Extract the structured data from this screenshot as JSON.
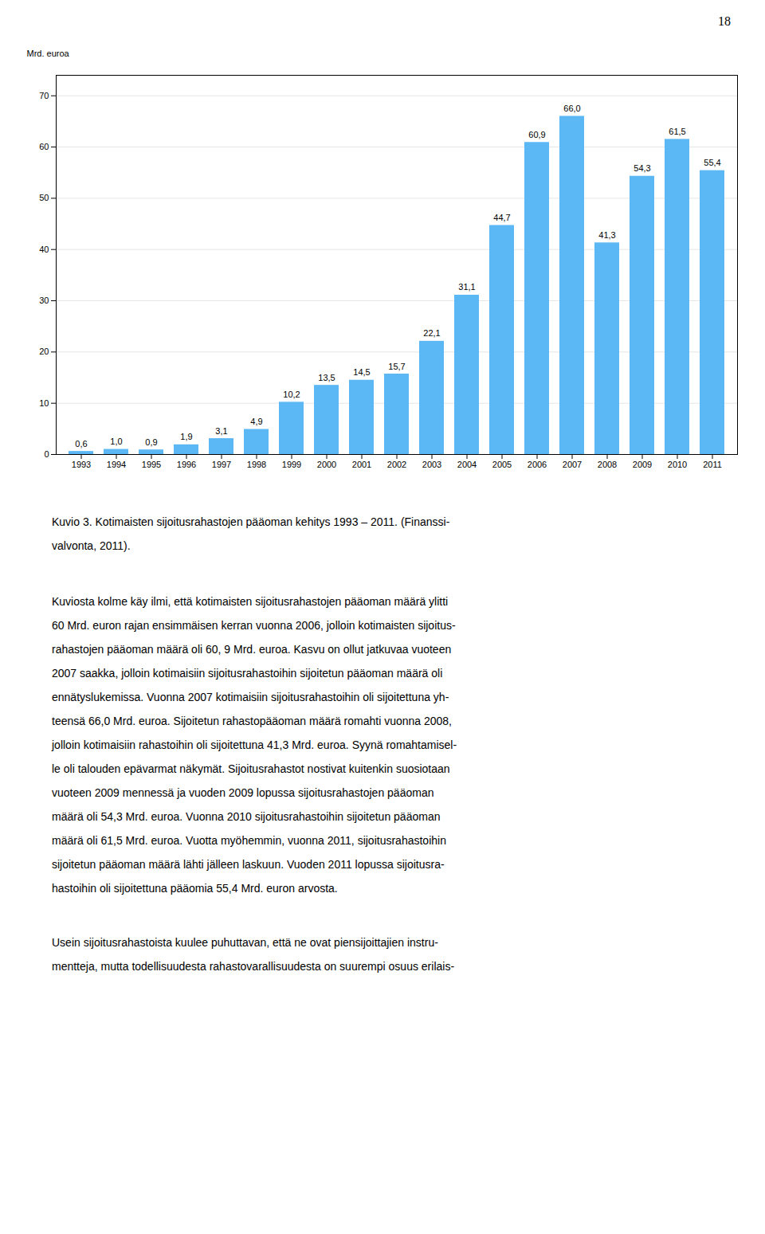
{
  "chart_data": {
    "type": "bar",
    "categories": [
      "1993",
      "1994",
      "1995",
      "1996",
      "1997",
      "1998",
      "1999",
      "2000",
      "2001",
      "2002",
      "2003",
      "2004",
      "2005",
      "2006",
      "2007",
      "2008",
      "2009",
      "2010",
      "2011"
    ],
    "values": [
      0.6,
      1.0,
      0.9,
      1.9,
      3.1,
      4.9,
      10.2,
      13.5,
      14.5,
      15.7,
      22.1,
      31.1,
      44.7,
      60.9,
      66.0,
      41.3,
      54.3,
      61.5,
      55.4
    ],
    "value_labels": [
      "0,6",
      "1,0",
      "0,9",
      "1,9",
      "3,1",
      "4,9",
      "10,2",
      "13,5",
      "14,5",
      "15,7",
      "22,1",
      "31,1",
      "44,7",
      "60,9",
      "66,0",
      "41,3",
      "54,3",
      "61,5",
      "55,4"
    ],
    "data_labels": true,
    "color": "#5BB8F5",
    "ylabel": "Mrd. euroa",
    "ylim": [
      0,
      74
    ],
    "yticks": [
      0,
      10,
      20,
      30,
      40,
      50,
      60,
      70
    ],
    "grid": true,
    "caption": [
      "Kuvio 3. Kotimaisten sijoitusrahastojen pääoman kehitys 1993 – 2011. (Finanssi-",
      "valvonta, 2011)."
    ]
  },
  "page": {
    "page_number": "18",
    "paragraphs": [
      [
        "Kuviosta kolme käy ilmi, että kotimaisten sijoitusrahastojen pääoman määrä ylitti",
        "60 Mrd. euron rajan ensimmäisen kerran vuonna 2006, jolloin kotimaisten sijoitus-",
        "rahastojen pääoman määrä oli 60, 9 Mrd. euroa. Kasvu on ollut jatkuvaa vuoteen",
        "2007 saakka, jolloin kotimaisiin sijoitusrahastoihin sijoitetun pääoman määrä oli",
        "ennätyslukemissa. Vuonna 2007 kotimaisiin sijoitusrahastoihin oli sijoitettuna yh-",
        "teensä 66,0 Mrd. euroa. Sijoitetun rahastopääoman määrä romahti vuonna 2008,",
        "jolloin kotimaisiin rahastoihin oli sijoitettuna 41,3 Mrd. euroa. Syynä romahtamisel-",
        "le oli talouden epävarmat näkymät. Sijoitusrahastot nostivat kuitenkin suosiotaan",
        "vuoteen 2009 mennessä ja vuoden 2009 lopussa sijoitusrahastojen pääoman",
        "määrä oli 54,3 Mrd. euroa. Vuonna 2010 sijoitusrahastoihin sijoitetun pääoman",
        "määrä oli 61,5 Mrd. euroa. Vuotta myöhemmin, vuonna 2011, sijoitusrahastoihin",
        "sijoitetun pääoman määrä lähti jälleen laskuun. Vuoden 2011 lopussa sijoitusra-",
        "hastoihin oli sijoitettuna pääomia 55,4 Mrd. euron arvosta."
      ],
      [
        "Usein sijoitusrahastoista kuulee puhuttavan, että ne ovat piensijoittajien instru-",
        "mentteja, mutta todellisuudesta rahastovarallisuudesta on suurempi osuus erilais-"
      ]
    ]
  }
}
